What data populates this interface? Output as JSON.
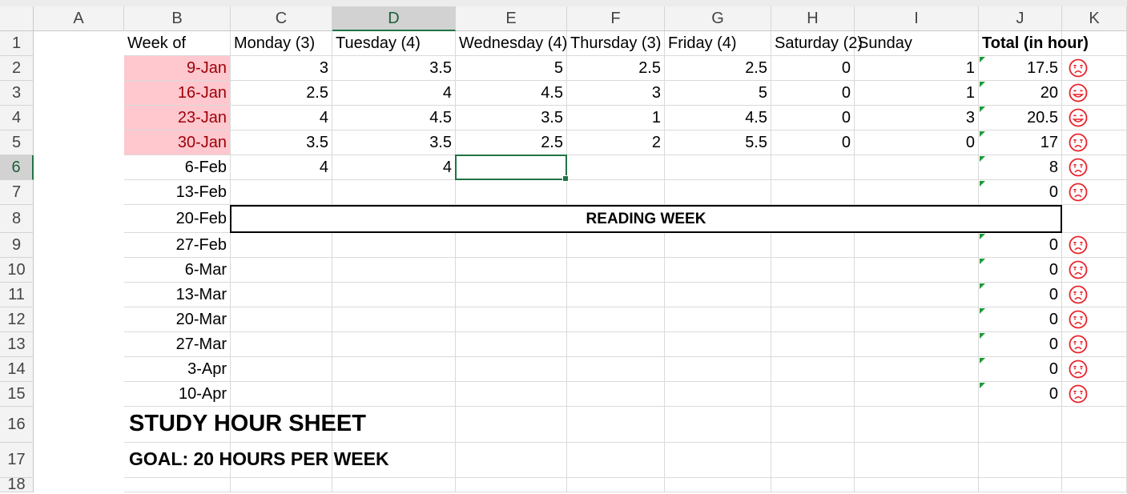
{
  "columns": [
    "A",
    "B",
    "C",
    "D",
    "E",
    "F",
    "G",
    "H",
    "I",
    "J",
    "K"
  ],
  "selected_column": "D",
  "selected_row": 6,
  "rows": [
    1,
    2,
    3,
    4,
    5,
    6,
    7,
    8,
    9,
    10,
    11,
    12,
    13,
    14,
    15,
    16,
    17,
    18
  ],
  "headers": {
    "week_of": "Week of",
    "monday": "Monday (3)",
    "tuesday": "Tuesday (4)",
    "wednesday": "Wednesday (4)",
    "thursday": "Thursday (3)",
    "friday": "Friday (4)",
    "saturday": "Saturday (2)",
    "sunday": "Sunday",
    "total": "Total (in hour)"
  },
  "data_rows": [
    {
      "row": 2,
      "week": "9-Jan",
      "mon": "3",
      "tue": "3.5",
      "wed": "5",
      "thu": "2.5",
      "fri": "2.5",
      "sat": "0",
      "sun": "1",
      "total": "17.5",
      "face": "sad",
      "highlight": true
    },
    {
      "row": 3,
      "week": "16-Jan",
      "mon": "2.5",
      "tue": "4",
      "wed": "4.5",
      "thu": "3",
      "fri": "5",
      "sat": "0",
      "sun": "1",
      "total": "20",
      "face": "happy",
      "highlight": true
    },
    {
      "row": 4,
      "week": "23-Jan",
      "mon": "4",
      "tue": "4.5",
      "wed": "3.5",
      "thu": "1",
      "fri": "4.5",
      "sat": "0",
      "sun": "3",
      "total": "20.5",
      "face": "happy",
      "highlight": true
    },
    {
      "row": 5,
      "week": "30-Jan",
      "mon": "3.5",
      "tue": "3.5",
      "wed": "2.5",
      "thu": "2",
      "fri": "5.5",
      "sat": "0",
      "sun": "0",
      "total": "17",
      "face": "sad",
      "highlight": true
    },
    {
      "row": 6,
      "week": "6-Feb",
      "mon": "4",
      "tue": "4",
      "wed": "",
      "thu": "",
      "fri": "",
      "sat": "",
      "sun": "",
      "total": "8",
      "face": "sad",
      "highlight": false
    },
    {
      "row": 7,
      "week": "13-Feb",
      "mon": "",
      "tue": "",
      "wed": "",
      "thu": "",
      "fri": "",
      "sat": "",
      "sun": "",
      "total": "0",
      "face": "sad",
      "highlight": false
    },
    {
      "row": 8,
      "week": "20-Feb",
      "reading": true
    },
    {
      "row": 9,
      "week": "27-Feb",
      "mon": "",
      "tue": "",
      "wed": "",
      "thu": "",
      "fri": "",
      "sat": "",
      "sun": "",
      "total": "0",
      "face": "sad",
      "highlight": false
    },
    {
      "row": 10,
      "week": "6-Mar",
      "mon": "",
      "tue": "",
      "wed": "",
      "thu": "",
      "fri": "",
      "sat": "",
      "sun": "",
      "total": "0",
      "face": "sad",
      "highlight": false
    },
    {
      "row": 11,
      "week": "13-Mar",
      "mon": "",
      "tue": "",
      "wed": "",
      "thu": "",
      "fri": "",
      "sat": "",
      "sun": "",
      "total": "0",
      "face": "sad",
      "highlight": false
    },
    {
      "row": 12,
      "week": "20-Mar",
      "mon": "",
      "tue": "",
      "wed": "",
      "thu": "",
      "fri": "",
      "sat": "",
      "sun": "",
      "total": "0",
      "face": "sad",
      "highlight": false
    },
    {
      "row": 13,
      "week": "27-Mar",
      "mon": "",
      "tue": "",
      "wed": "",
      "thu": "",
      "fri": "",
      "sat": "",
      "sun": "",
      "total": "0",
      "face": "sad",
      "highlight": false
    },
    {
      "row": 14,
      "week": "3-Apr",
      "mon": "",
      "tue": "",
      "wed": "",
      "thu": "",
      "fri": "",
      "sat": "",
      "sun": "",
      "total": "0",
      "face": "sad",
      "highlight": false
    },
    {
      "row": 15,
      "week": "10-Apr",
      "mon": "",
      "tue": "",
      "wed": "",
      "thu": "",
      "fri": "",
      "sat": "",
      "sun": "",
      "total": "0",
      "face": "sad",
      "highlight": false
    }
  ],
  "reading_week_label": "READING WEEK",
  "title": "STUDY HOUR SHEET",
  "goal": "GOAL: 20 HOURS PER WEEK",
  "colors": {
    "accent": "#217346",
    "highlight_fill": "#ffc7ce",
    "highlight_text": "#9c0006",
    "face_red": "#e8242c",
    "comment_flag": "#1f9a3a"
  },
  "icons": {
    "sad": "sad-face-icon",
    "happy": "happy-face-icon"
  }
}
